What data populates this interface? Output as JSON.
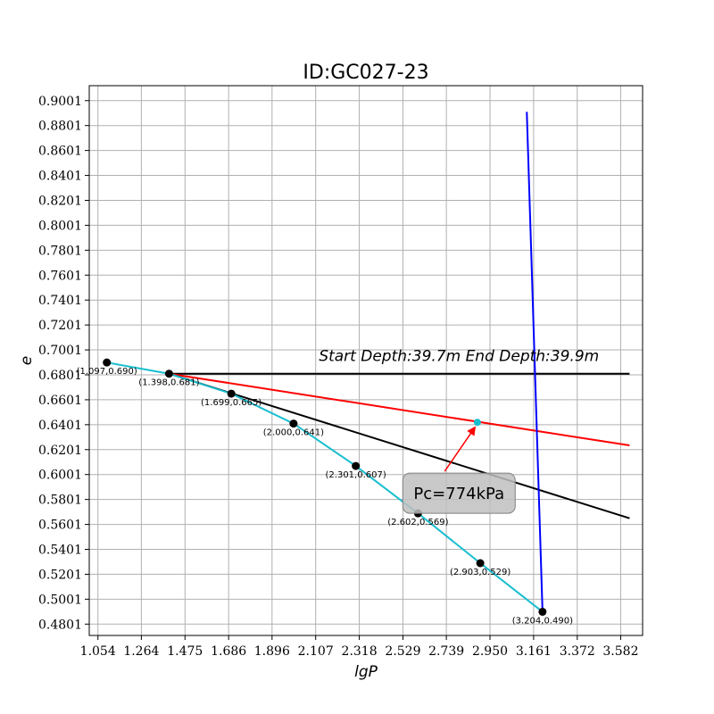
{
  "chart_data": {
    "type": "line",
    "title": "ID:GC027-23",
    "xlabel": "lgP",
    "ylabel": "e",
    "xlim": [
      1.012,
      3.688
    ],
    "ylim": [
      0.471,
      0.9121
    ],
    "x_ticks": [
      "1.054",
      "1.264",
      "1.475",
      "1.686",
      "1.896",
      "2.107",
      "2.318",
      "2.529",
      "2.739",
      "2.950",
      "3.161",
      "3.372",
      "3.582"
    ],
    "y_ticks": [
      "0.9001",
      "0.8801",
      "0.8601",
      "0.8401",
      "0.8201",
      "0.8001",
      "0.7801",
      "0.7601",
      "0.7401",
      "0.7201",
      "0.7001",
      "0.6801",
      "0.6601",
      "0.6401",
      "0.6201",
      "0.6001",
      "0.5801",
      "0.5601",
      "0.5401",
      "0.5201",
      "0.5001",
      "0.4801"
    ],
    "grid": true,
    "series": [
      {
        "color": "#17becf",
        "x": [
          1.097,
          1.398,
          1.699,
          2.0,
          2.301,
          2.602,
          2.903,
          3.204
        ],
        "y": [
          0.69,
          0.681,
          0.665,
          0.641,
          0.607,
          0.569,
          0.529,
          0.49
        ],
        "point_labels": [
          "(1.097,0.690)",
          "(1.398,0.681)",
          "(1.699,0.665)",
          "(2.000,0.641)",
          "(2.301,0.607)",
          "(2.602,0.569)",
          "(2.903,0.529)",
          "(3.204,0.490)"
        ]
      }
    ],
    "lines": [
      {
        "color": "#000000",
        "x": [
          1.398,
          3.625
        ],
        "y": [
          0.681,
          0.681
        ]
      },
      {
        "color": "#ff0000",
        "x": [
          1.398,
          3.625
        ],
        "y": [
          0.681,
          0.6235
        ]
      },
      {
        "color": "#000000",
        "x": [
          1.398,
          3.625
        ],
        "y": [
          0.681,
          0.565
        ]
      },
      {
        "color": "#0000ff",
        "x": [
          3.128,
          3.204
        ],
        "y": [
          0.8911,
          0.49
        ]
      }
    ],
    "pc_point": {
      "x": 2.889,
      "y": 0.642,
      "color": "#17becf"
    },
    "annotations": {
      "depth_text": "Start Depth:39.7m End Depth:39.9m",
      "pc_text": "Pc=774kPa",
      "pc_box_anchor": {
        "x": 2.8,
        "y": 0.5855
      }
    }
  }
}
